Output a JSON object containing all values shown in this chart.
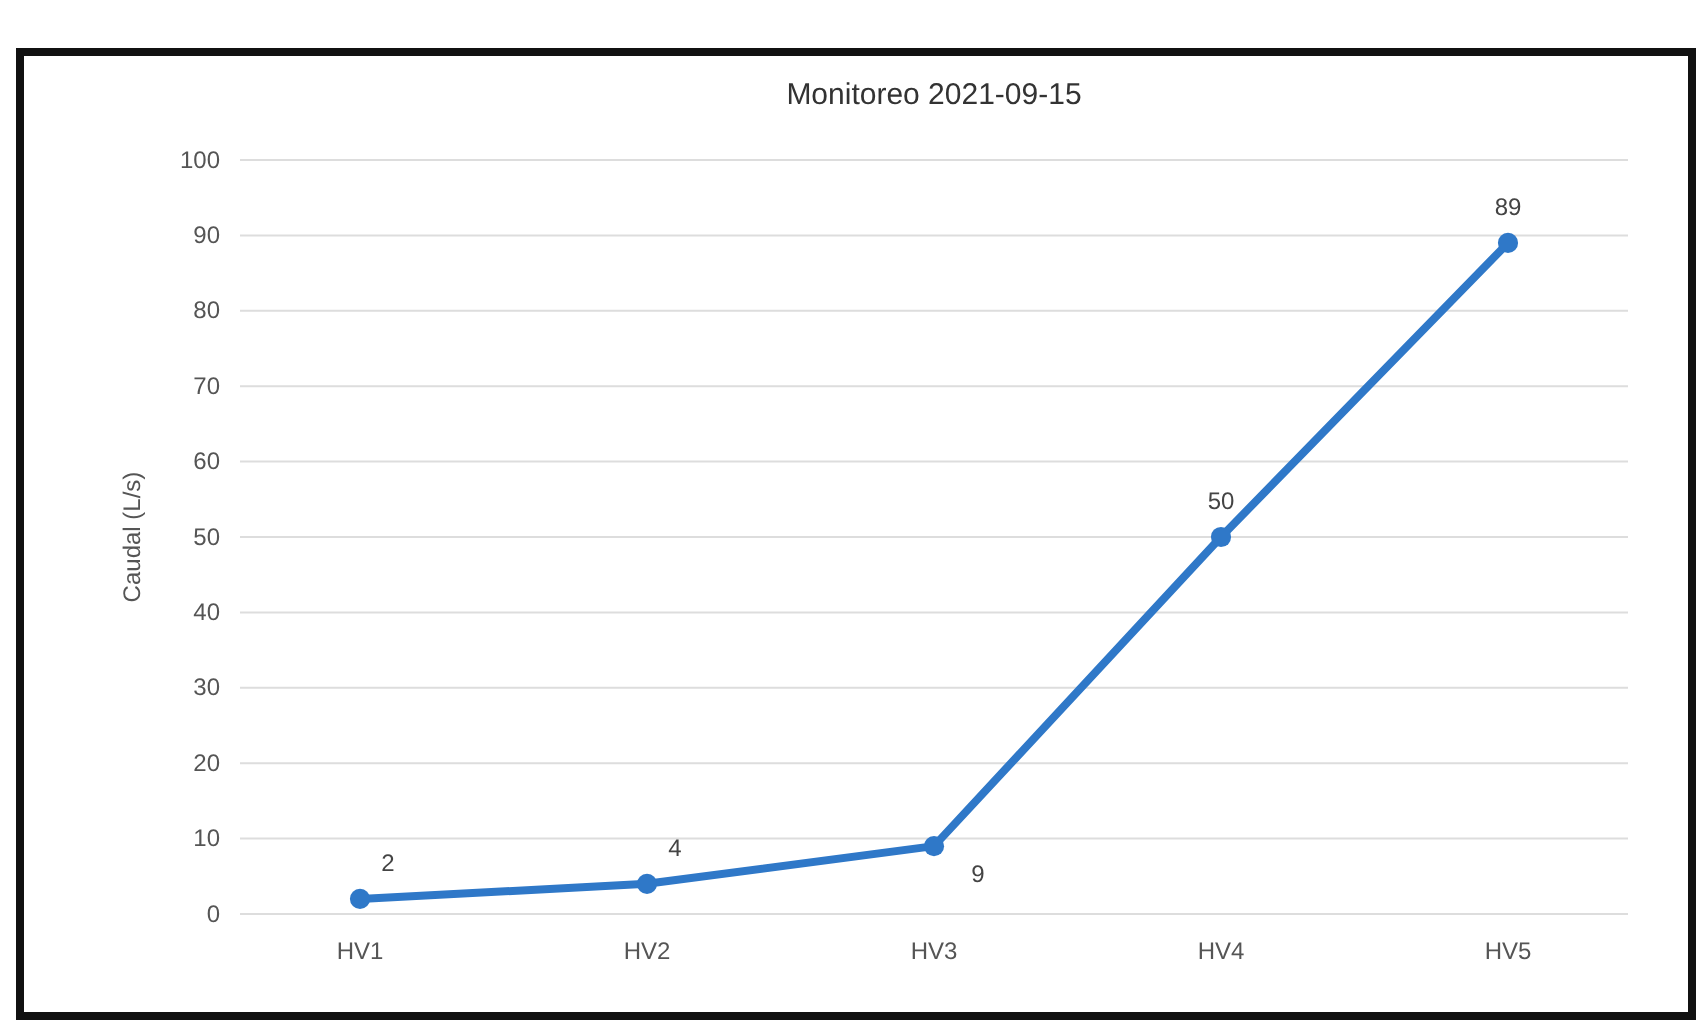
{
  "chart_data": {
    "type": "line",
    "title": "Monitoreo 2021-09-15",
    "ylabel": "Caudal (L/s)",
    "categories": [
      "HV1",
      "HV2",
      "HV3",
      "HV4",
      "HV5"
    ],
    "series": [
      {
        "color": "#2f78c8",
        "values": [
          2,
          4,
          9,
          50,
          89
        ]
      }
    ],
    "ylim": [
      0,
      100
    ],
    "yticks": [
      0,
      10,
      20,
      30,
      40,
      50,
      60,
      70,
      80,
      90,
      100
    ],
    "grid": "y",
    "marker": "circle",
    "data_labels": true
  }
}
